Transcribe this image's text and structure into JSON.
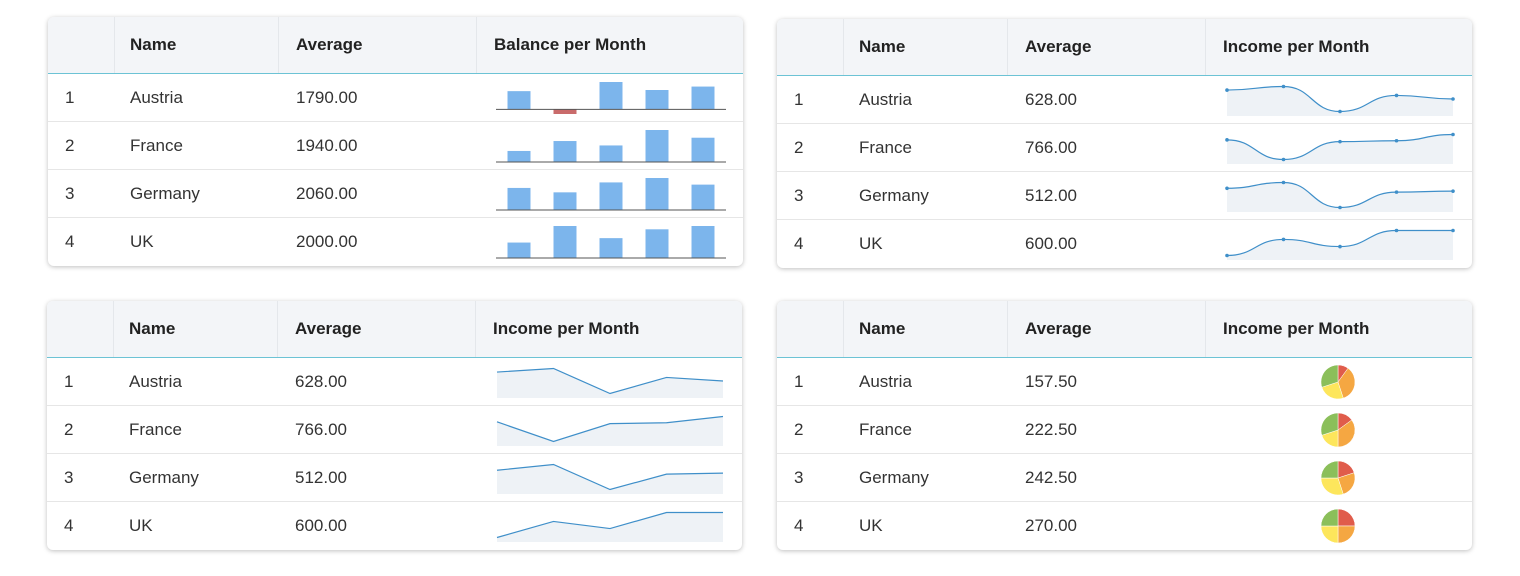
{
  "tables": [
    {
      "sparkline": "bar",
      "columns": [
        "Name",
        "Average",
        "Balance per Month"
      ],
      "bar_color": "#7cb5ec",
      "negative_color": "#c96b6b",
      "rows": [
        {
          "index": 1,
          "name": "Austria",
          "average": "1790.00",
          "values": [
            16,
            -4,
            24,
            17,
            20
          ]
        },
        {
          "index": 2,
          "name": "France",
          "average": "1940.00",
          "values": [
            10,
            19,
            15,
            29,
            22
          ]
        },
        {
          "index": 3,
          "name": "Germany",
          "average": "2060.00",
          "values": [
            20,
            16,
            25,
            29,
            23
          ]
        },
        {
          "index": 4,
          "name": "UK",
          "average": "2000.00",
          "values": [
            14,
            29,
            18,
            26,
            29
          ]
        }
      ]
    },
    {
      "sparkline": "smooth-line",
      "columns": [
        "Name",
        "Average",
        "Income per Month"
      ],
      "line_color": "#3f8fc9",
      "rows": [
        {
          "index": 1,
          "name": "Austria",
          "average": "628.00",
          "values": [
            680,
            700,
            560,
            650,
            630
          ]
        },
        {
          "index": 2,
          "name": "France",
          "average": "766.00",
          "values": [
            650,
            540,
            640,
            645,
            680
          ]
        },
        {
          "index": 3,
          "name": "Germany",
          "average": "512.00",
          "values": [
            620,
            650,
            520,
            600,
            605
          ]
        },
        {
          "index": 4,
          "name": "UK",
          "average": "600.00",
          "values": [
            450,
            540,
            500,
            590,
            590
          ]
        }
      ]
    },
    {
      "sparkline": "line",
      "columns": [
        "Name",
        "Average",
        "Income per Month"
      ],
      "line_color": "#3f8fc9",
      "rows": [
        {
          "index": 1,
          "name": "Austria",
          "average": "628.00",
          "values": [
            680,
            700,
            560,
            650,
            630
          ]
        },
        {
          "index": 2,
          "name": "France",
          "average": "766.00",
          "values": [
            650,
            540,
            640,
            645,
            680
          ]
        },
        {
          "index": 3,
          "name": "Germany",
          "average": "512.00",
          "values": [
            620,
            650,
            520,
            600,
            605
          ]
        },
        {
          "index": 4,
          "name": "UK",
          "average": "600.00",
          "values": [
            450,
            540,
            500,
            590,
            590
          ]
        }
      ]
    },
    {
      "sparkline": "pie",
      "columns": [
        "Name",
        "Average",
        "Income per Month"
      ],
      "slice_colors": [
        "#e05c4b",
        "#f5a742",
        "#fde65c",
        "#8bbf5a"
      ],
      "rows": [
        {
          "index": 1,
          "name": "Austria",
          "average": "157.50",
          "values": [
            10,
            35,
            25,
            30
          ]
        },
        {
          "index": 2,
          "name": "France",
          "average": "222.50",
          "values": [
            15,
            35,
            20,
            30
          ]
        },
        {
          "index": 3,
          "name": "Germany",
          "average": "242.50",
          "values": [
            20,
            25,
            30,
            25
          ]
        },
        {
          "index": 4,
          "name": "UK",
          "average": "270.00",
          "values": [
            25,
            25,
            25,
            25
          ]
        }
      ]
    }
  ]
}
